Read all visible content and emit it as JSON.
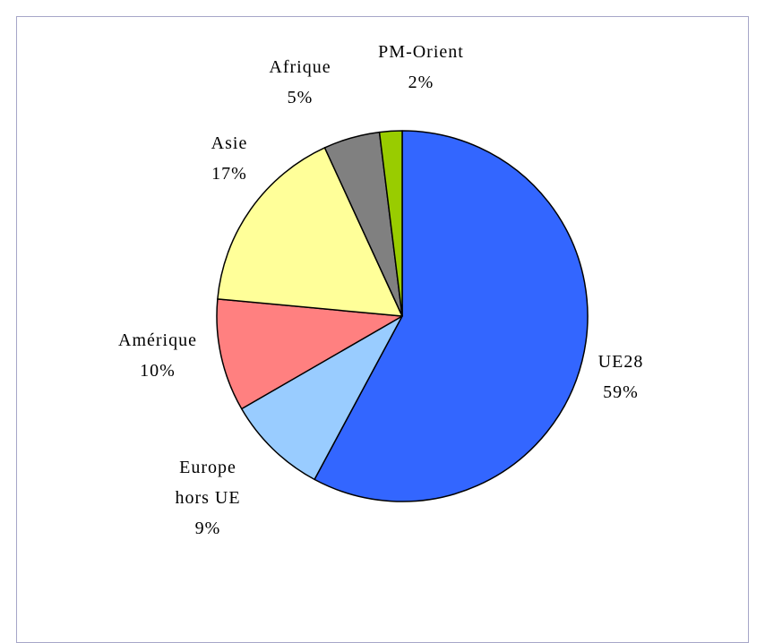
{
  "chart_data": {
    "type": "pie",
    "title": "",
    "slices": [
      {
        "label": "UE28",
        "value": 59,
        "value_label": "59%",
        "color": "#3366ff"
      },
      {
        "label": "Europe hors UE",
        "lines": [
          "Europe",
          "hors UE"
        ],
        "value": 9,
        "value_label": "9%",
        "color": "#99ccff"
      },
      {
        "label": "Amérique",
        "value": 10,
        "value_label": "10%",
        "color": "#ff8080"
      },
      {
        "label": "Asie",
        "value": 17,
        "value_label": "17%",
        "color": "#ffff99"
      },
      {
        "label": "Afrique",
        "value": 5,
        "value_label": "5%",
        "color": "#808080"
      },
      {
        "label": "PM-Orient",
        "value": 2,
        "value_label": "2%",
        "color": "#99cc00"
      }
    ],
    "start_angle": "12 o'clock",
    "direction": "clockwise",
    "legend": "none"
  }
}
